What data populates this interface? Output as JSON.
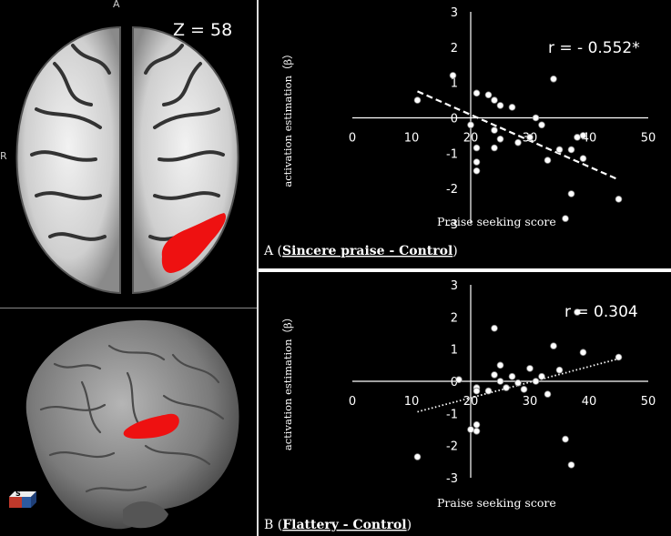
{
  "brain": {
    "axial_orientation_top": "A",
    "axial_orientation_left": "R",
    "slice_label": "Z = 58",
    "cube_letter": "S",
    "activation_color": "#ee1111"
  },
  "chart_data": [
    {
      "type": "scatter",
      "panel_label": "A",
      "condition": "Sincere praise - Control",
      "xlabel": "Praise seeking score",
      "ylabel": "activation estimation（β）",
      "xlim": [
        0,
        50
      ],
      "ylim": [
        -3,
        3
      ],
      "x_ticks": [
        0,
        10,
        20,
        30,
        40,
        50
      ],
      "y_ticks": [
        3,
        2,
        1,
        0,
        -1,
        -2,
        -3
      ],
      "correlation": "r = - 0.552*",
      "trend": {
        "style": "dashed",
        "x": [
          11,
          45
        ],
        "y": [
          0.75,
          -1.75
        ]
      },
      "points": [
        {
          "x": 11,
          "y": 0.5
        },
        {
          "x": 17,
          "y": 1.2
        },
        {
          "x": 21,
          "y": 0.7
        },
        {
          "x": 23,
          "y": 0.65
        },
        {
          "x": 24,
          "y": 0.5
        },
        {
          "x": 25,
          "y": 0.35
        },
        {
          "x": 27,
          "y": 0.3
        },
        {
          "x": 20,
          "y": -0.2
        },
        {
          "x": 21,
          "y": -0.85
        },
        {
          "x": 21,
          "y": -1.25
        },
        {
          "x": 21,
          "y": -1.5
        },
        {
          "x": 24,
          "y": -0.35
        },
        {
          "x": 24,
          "y": -0.85
        },
        {
          "x": 25,
          "y": -0.6
        },
        {
          "x": 28,
          "y": -0.7
        },
        {
          "x": 30,
          "y": -0.55
        },
        {
          "x": 31,
          "y": 0.0
        },
        {
          "x": 32,
          "y": -0.2
        },
        {
          "x": 34,
          "y": 1.1
        },
        {
          "x": 33,
          "y": -1.2
        },
        {
          "x": 35,
          "y": -0.9
        },
        {
          "x": 37,
          "y": -0.9
        },
        {
          "x": 38,
          "y": -0.55
        },
        {
          "x": 39,
          "y": -1.15
        },
        {
          "x": 39,
          "y": -0.5
        },
        {
          "x": 37,
          "y": -2.15
        },
        {
          "x": 36,
          "y": -2.85
        },
        {
          "x": 45,
          "y": -2.3
        }
      ]
    },
    {
      "type": "scatter",
      "panel_label": "B",
      "condition": "Flattery - Control",
      "xlabel": "Praise seeking score",
      "ylabel": "activation estimation（β）",
      "xlim": [
        0,
        50
      ],
      "ylim": [
        -3,
        3
      ],
      "x_ticks": [
        0,
        10,
        20,
        30,
        40,
        50
      ],
      "y_ticks": [
        3,
        2,
        1,
        0,
        -1,
        -2,
        -3
      ],
      "correlation": "r = 0.304",
      "trend": {
        "style": "dotted",
        "x": [
          11,
          45
        ],
        "y": [
          -0.95,
          0.7
        ]
      },
      "points": [
        {
          "x": 11,
          "y": -2.35
        },
        {
          "x": 18,
          "y": 0.05
        },
        {
          "x": 21,
          "y": -0.2
        },
        {
          "x": 21,
          "y": -0.3
        },
        {
          "x": 20,
          "y": -1.5
        },
        {
          "x": 21,
          "y": -1.35
        },
        {
          "x": 21,
          "y": -1.55
        },
        {
          "x": 23,
          "y": -0.3
        },
        {
          "x": 24,
          "y": 0.2
        },
        {
          "x": 24,
          "y": 1.65
        },
        {
          "x": 25,
          "y": 0.5
        },
        {
          "x": 25,
          "y": 0.0
        },
        {
          "x": 26,
          "y": -0.2
        },
        {
          "x": 27,
          "y": 0.15
        },
        {
          "x": 28,
          "y": -0.05
        },
        {
          "x": 29,
          "y": -0.25
        },
        {
          "x": 30,
          "y": 0.4
        },
        {
          "x": 31,
          "y": 0.0
        },
        {
          "x": 32,
          "y": 0.15
        },
        {
          "x": 33,
          "y": -0.4
        },
        {
          "x": 34,
          "y": 1.1
        },
        {
          "x": 35,
          "y": 0.35
        },
        {
          "x": 36,
          "y": -1.8
        },
        {
          "x": 37,
          "y": -2.6
        },
        {
          "x": 38,
          "y": 2.15
        },
        {
          "x": 39,
          "y": 0.9
        },
        {
          "x": 45,
          "y": 0.75
        }
      ]
    }
  ]
}
